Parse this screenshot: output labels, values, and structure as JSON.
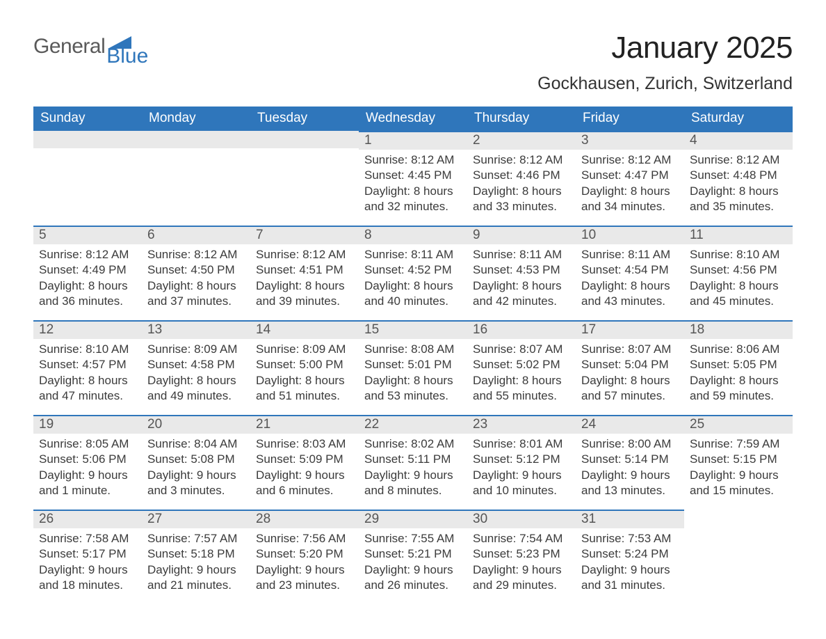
{
  "brand": {
    "text_general": "General",
    "text_blue": "Blue",
    "flag_color": "#2f76bb"
  },
  "title": "January 2025",
  "subtitle": "Gockhausen, Zurich, Switzerland",
  "weekdays": [
    "Sunday",
    "Monday",
    "Tuesday",
    "Wednesday",
    "Thursday",
    "Friday",
    "Saturday"
  ],
  "colors": {
    "header_bg": "#2f76bb",
    "header_text": "#ffffff",
    "daynum_bg": "#e9e9e9",
    "daynum_border": "#2f76bb",
    "body_text": "#3b3b3b",
    "page_bg": "#ffffff"
  },
  "fonts": {
    "title_size_pt": 33,
    "subtitle_size_pt": 19,
    "header_size_pt": 14,
    "body_size_pt": 13
  },
  "weeks": [
    [
      null,
      null,
      null,
      {
        "n": "1",
        "sunrise": "Sunrise: 8:12 AM",
        "sunset": "Sunset: 4:45 PM",
        "dl1": "Daylight: 8 hours",
        "dl2": "and 32 minutes."
      },
      {
        "n": "2",
        "sunrise": "Sunrise: 8:12 AM",
        "sunset": "Sunset: 4:46 PM",
        "dl1": "Daylight: 8 hours",
        "dl2": "and 33 minutes."
      },
      {
        "n": "3",
        "sunrise": "Sunrise: 8:12 AM",
        "sunset": "Sunset: 4:47 PM",
        "dl1": "Daylight: 8 hours",
        "dl2": "and 34 minutes."
      },
      {
        "n": "4",
        "sunrise": "Sunrise: 8:12 AM",
        "sunset": "Sunset: 4:48 PM",
        "dl1": "Daylight: 8 hours",
        "dl2": "and 35 minutes."
      }
    ],
    [
      {
        "n": "5",
        "sunrise": "Sunrise: 8:12 AM",
        "sunset": "Sunset: 4:49 PM",
        "dl1": "Daylight: 8 hours",
        "dl2": "and 36 minutes."
      },
      {
        "n": "6",
        "sunrise": "Sunrise: 8:12 AM",
        "sunset": "Sunset: 4:50 PM",
        "dl1": "Daylight: 8 hours",
        "dl2": "and 37 minutes."
      },
      {
        "n": "7",
        "sunrise": "Sunrise: 8:12 AM",
        "sunset": "Sunset: 4:51 PM",
        "dl1": "Daylight: 8 hours",
        "dl2": "and 39 minutes."
      },
      {
        "n": "8",
        "sunrise": "Sunrise: 8:11 AM",
        "sunset": "Sunset: 4:52 PM",
        "dl1": "Daylight: 8 hours",
        "dl2": "and 40 minutes."
      },
      {
        "n": "9",
        "sunrise": "Sunrise: 8:11 AM",
        "sunset": "Sunset: 4:53 PM",
        "dl1": "Daylight: 8 hours",
        "dl2": "and 42 minutes."
      },
      {
        "n": "10",
        "sunrise": "Sunrise: 8:11 AM",
        "sunset": "Sunset: 4:54 PM",
        "dl1": "Daylight: 8 hours",
        "dl2": "and 43 minutes."
      },
      {
        "n": "11",
        "sunrise": "Sunrise: 8:10 AM",
        "sunset": "Sunset: 4:56 PM",
        "dl1": "Daylight: 8 hours",
        "dl2": "and 45 minutes."
      }
    ],
    [
      {
        "n": "12",
        "sunrise": "Sunrise: 8:10 AM",
        "sunset": "Sunset: 4:57 PM",
        "dl1": "Daylight: 8 hours",
        "dl2": "and 47 minutes."
      },
      {
        "n": "13",
        "sunrise": "Sunrise: 8:09 AM",
        "sunset": "Sunset: 4:58 PM",
        "dl1": "Daylight: 8 hours",
        "dl2": "and 49 minutes."
      },
      {
        "n": "14",
        "sunrise": "Sunrise: 8:09 AM",
        "sunset": "Sunset: 5:00 PM",
        "dl1": "Daylight: 8 hours",
        "dl2": "and 51 minutes."
      },
      {
        "n": "15",
        "sunrise": "Sunrise: 8:08 AM",
        "sunset": "Sunset: 5:01 PM",
        "dl1": "Daylight: 8 hours",
        "dl2": "and 53 minutes."
      },
      {
        "n": "16",
        "sunrise": "Sunrise: 8:07 AM",
        "sunset": "Sunset: 5:02 PM",
        "dl1": "Daylight: 8 hours",
        "dl2": "and 55 minutes."
      },
      {
        "n": "17",
        "sunrise": "Sunrise: 8:07 AM",
        "sunset": "Sunset: 5:04 PM",
        "dl1": "Daylight: 8 hours",
        "dl2": "and 57 minutes."
      },
      {
        "n": "18",
        "sunrise": "Sunrise: 8:06 AM",
        "sunset": "Sunset: 5:05 PM",
        "dl1": "Daylight: 8 hours",
        "dl2": "and 59 minutes."
      }
    ],
    [
      {
        "n": "19",
        "sunrise": "Sunrise: 8:05 AM",
        "sunset": "Sunset: 5:06 PM",
        "dl1": "Daylight: 9 hours",
        "dl2": "and 1 minute."
      },
      {
        "n": "20",
        "sunrise": "Sunrise: 8:04 AM",
        "sunset": "Sunset: 5:08 PM",
        "dl1": "Daylight: 9 hours",
        "dl2": "and 3 minutes."
      },
      {
        "n": "21",
        "sunrise": "Sunrise: 8:03 AM",
        "sunset": "Sunset: 5:09 PM",
        "dl1": "Daylight: 9 hours",
        "dl2": "and 6 minutes."
      },
      {
        "n": "22",
        "sunrise": "Sunrise: 8:02 AM",
        "sunset": "Sunset: 5:11 PM",
        "dl1": "Daylight: 9 hours",
        "dl2": "and 8 minutes."
      },
      {
        "n": "23",
        "sunrise": "Sunrise: 8:01 AM",
        "sunset": "Sunset: 5:12 PM",
        "dl1": "Daylight: 9 hours",
        "dl2": "and 10 minutes."
      },
      {
        "n": "24",
        "sunrise": "Sunrise: 8:00 AM",
        "sunset": "Sunset: 5:14 PM",
        "dl1": "Daylight: 9 hours",
        "dl2": "and 13 minutes."
      },
      {
        "n": "25",
        "sunrise": "Sunrise: 7:59 AM",
        "sunset": "Sunset: 5:15 PM",
        "dl1": "Daylight: 9 hours",
        "dl2": "and 15 minutes."
      }
    ],
    [
      {
        "n": "26",
        "sunrise": "Sunrise: 7:58 AM",
        "sunset": "Sunset: 5:17 PM",
        "dl1": "Daylight: 9 hours",
        "dl2": "and 18 minutes."
      },
      {
        "n": "27",
        "sunrise": "Sunrise: 7:57 AM",
        "sunset": "Sunset: 5:18 PM",
        "dl1": "Daylight: 9 hours",
        "dl2": "and 21 minutes."
      },
      {
        "n": "28",
        "sunrise": "Sunrise: 7:56 AM",
        "sunset": "Sunset: 5:20 PM",
        "dl1": "Daylight: 9 hours",
        "dl2": "and 23 minutes."
      },
      {
        "n": "29",
        "sunrise": "Sunrise: 7:55 AM",
        "sunset": "Sunset: 5:21 PM",
        "dl1": "Daylight: 9 hours",
        "dl2": "and 26 minutes."
      },
      {
        "n": "30",
        "sunrise": "Sunrise: 7:54 AM",
        "sunset": "Sunset: 5:23 PM",
        "dl1": "Daylight: 9 hours",
        "dl2": "and 29 minutes."
      },
      {
        "n": "31",
        "sunrise": "Sunrise: 7:53 AM",
        "sunset": "Sunset: 5:24 PM",
        "dl1": "Daylight: 9 hours",
        "dl2": "and 31 minutes."
      },
      null
    ]
  ]
}
